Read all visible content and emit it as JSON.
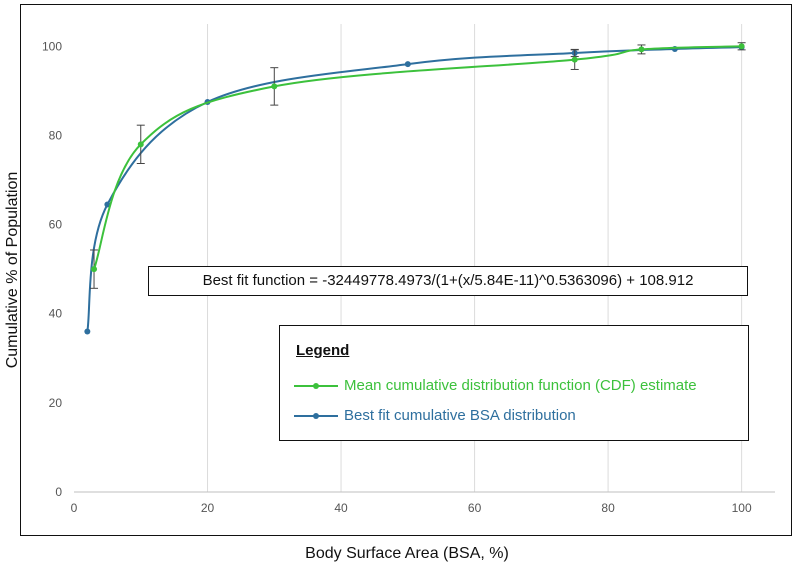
{
  "chart_data": {
    "type": "line",
    "title": "",
    "xlabel": "Body Surface Area (BSA, %)",
    "ylabel": "Cumulative % of Population",
    "xlim": [
      0,
      105
    ],
    "ylim": [
      0,
      105
    ],
    "xticks": [
      0,
      20,
      40,
      60,
      80,
      100
    ],
    "yticks": [
      0,
      20,
      40,
      60,
      80,
      100
    ],
    "grid": "vertical",
    "annotation": "Best fit function = -32449778.4973/(1+(x/5.84E-11)^0.5363096) + 108.912",
    "legend": {
      "title": "Legend",
      "position": "lower-right"
    },
    "series": [
      {
        "name": "Mean cumulative distribution function (CDF) estimate",
        "color": "#3cc13c",
        "x": [
          3,
          10,
          30,
          75,
          85,
          100
        ],
        "y": [
          50,
          78,
          91,
          97,
          99.3,
          100
        ],
        "error": [
          4.3,
          4.3,
          4.2,
          2.2,
          1.0,
          0.8
        ]
      },
      {
        "name": "Best fit cumulative BSA distribution",
        "color": "#2e6f9e",
        "x": [
          2,
          5,
          20,
          50,
          75,
          90,
          100
        ],
        "y": [
          36,
          64.5,
          87.5,
          96,
          98.5,
          99.4,
          99.8
        ],
        "error": [
          0,
          0,
          0,
          0,
          0.8,
          0,
          0
        ]
      }
    ]
  }
}
